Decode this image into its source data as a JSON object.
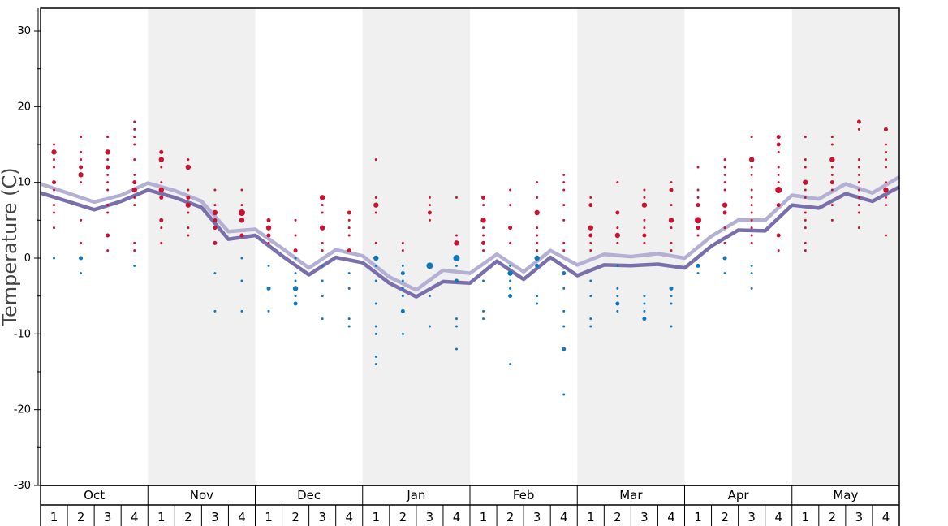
{
  "chart_data": {
    "type": "scatter",
    "title": "",
    "ylabel": "Temperature (C)",
    "xlabel": "",
    "ylim": [
      -30,
      33
    ],
    "yticks": [
      -30,
      -20,
      -10,
      0,
      10,
      20,
      30
    ],
    "grid": false,
    "months": [
      "Oct",
      "Nov",
      "Dec",
      "Jan",
      "Feb",
      "Mar",
      "Apr",
      "May"
    ],
    "weeks": [
      "1",
      "2",
      "3",
      "4"
    ],
    "colors": {
      "warm_points": "#cc1133",
      "cold_points": "#1177bb",
      "line_light": "#b3b0d3",
      "line_dark": "#7a6fab",
      "shade": "#f0f0f0"
    },
    "series": [
      {
        "name": "",
        "values": [
          9.8,
          8.6,
          7.4,
          8.3,
          9.9,
          8.9,
          7.5,
          3.5,
          3.8,
          1.3,
          -1.3,
          1.1,
          0.3,
          -2.5,
          -4.2,
          -1.6,
          -2.0,
          0.5,
          -1.8,
          1.0,
          -0.9,
          0.5,
          0.2,
          0.6,
          0.0,
          2.9,
          5.0,
          5.0,
          8.3,
          7.8,
          9.8,
          8.6,
          10.7
        ]
      },
      {
        "name": "",
        "values": [
          8.6,
          7.5,
          6.4,
          7.5,
          9.0,
          8.0,
          6.7,
          2.5,
          3.0,
          0.3,
          -2.2,
          0.1,
          -0.6,
          -3.3,
          -5.1,
          -3.1,
          -3.3,
          -0.4,
          -2.8,
          0.1,
          -2.3,
          -0.9,
          -1.0,
          -0.8,
          -1.3,
          1.6,
          3.7,
          3.6,
          7.0,
          6.6,
          8.5,
          7.5,
          9.4
        ]
      }
    ],
    "points_warm": [
      [
        1,
        15,
        1
      ],
      [
        1,
        14,
        3
      ],
      [
        1,
        13,
        1
      ],
      [
        1,
        12,
        1
      ],
      [
        1,
        10,
        2
      ],
      [
        1,
        9,
        1
      ],
      [
        1,
        7,
        1
      ],
      [
        1,
        6,
        1
      ],
      [
        1,
        4,
        1
      ],
      [
        2,
        16,
        1
      ],
      [
        2,
        14,
        1
      ],
      [
        2,
        13,
        1
      ],
      [
        2,
        12,
        2
      ],
      [
        2,
        11,
        3
      ],
      [
        2,
        10,
        1
      ],
      [
        2,
        5,
        1
      ],
      [
        2,
        2,
        1
      ],
      [
        3,
        16,
        1
      ],
      [
        3,
        14,
        3
      ],
      [
        3,
        13,
        1
      ],
      [
        3,
        12,
        2
      ],
      [
        3,
        11,
        1
      ],
      [
        3,
        10,
        1
      ],
      [
        3,
        9,
        1
      ],
      [
        3,
        7,
        1
      ],
      [
        3,
        6,
        1
      ],
      [
        3,
        3,
        2
      ],
      [
        3,
        1,
        1
      ],
      [
        4,
        18,
        1
      ],
      [
        4,
        17,
        1
      ],
      [
        4,
        16,
        1
      ],
      [
        4,
        15,
        1
      ],
      [
        4,
        13,
        1
      ],
      [
        4,
        11,
        1
      ],
      [
        4,
        10,
        2
      ],
      [
        4,
        9,
        3
      ],
      [
        4,
        8,
        1
      ],
      [
        4,
        7,
        1
      ],
      [
        4,
        2,
        1
      ],
      [
        4,
        1,
        1
      ],
      [
        5,
        14,
        2
      ],
      [
        5,
        13,
        3
      ],
      [
        5,
        12,
        1
      ],
      [
        5,
        10,
        1
      ],
      [
        5,
        9,
        3
      ],
      [
        5,
        8,
        2
      ],
      [
        5,
        5,
        2
      ],
      [
        5,
        4,
        1
      ],
      [
        5,
        2,
        1
      ],
      [
        6,
        13,
        1
      ],
      [
        6,
        12,
        3
      ],
      [
        6,
        9,
        1
      ],
      [
        6,
        8,
        2
      ],
      [
        6,
        7,
        3
      ],
      [
        6,
        6,
        1
      ],
      [
        6,
        4,
        1
      ],
      [
        6,
        3,
        1
      ],
      [
        7,
        9,
        1
      ],
      [
        7,
        7,
        1
      ],
      [
        7,
        6,
        3
      ],
      [
        7,
        5,
        2
      ],
      [
        7,
        4,
        2
      ],
      [
        7,
        2,
        2
      ],
      [
        8,
        9,
        1
      ],
      [
        8,
        7,
        1
      ],
      [
        8,
        6,
        4
      ],
      [
        8,
        5,
        3
      ],
      [
        8,
        3,
        2
      ],
      [
        9,
        5,
        2
      ],
      [
        9,
        4,
        3
      ],
      [
        9,
        3,
        2
      ],
      [
        9,
        2,
        1
      ],
      [
        10,
        5,
        1
      ],
      [
        10,
        3,
        1
      ],
      [
        10,
        1,
        2
      ],
      [
        11,
        8,
        3
      ],
      [
        11,
        7,
        1
      ],
      [
        11,
        6,
        1
      ],
      [
        11,
        4,
        3
      ],
      [
        11,
        2,
        1
      ],
      [
        11,
        1,
        1
      ],
      [
        12,
        6,
        2
      ],
      [
        12,
        5,
        1
      ],
      [
        12,
        4,
        1
      ],
      [
        12,
        3,
        1
      ],
      [
        12,
        1,
        2
      ],
      [
        13,
        13,
        1
      ],
      [
        13,
        8,
        1
      ],
      [
        13,
        7,
        3
      ],
      [
        13,
        6,
        1
      ],
      [
        13,
        2,
        1
      ],
      [
        14,
        2,
        1
      ],
      [
        14,
        1,
        1
      ],
      [
        15,
        8,
        1
      ],
      [
        15,
        7,
        1
      ],
      [
        15,
        6,
        2
      ],
      [
        15,
        5,
        1
      ],
      [
        16,
        8,
        1
      ],
      [
        16,
        3,
        1
      ],
      [
        16,
        2,
        3
      ],
      [
        17,
        8,
        2
      ],
      [
        17,
        7,
        1
      ],
      [
        17,
        5,
        3
      ],
      [
        17,
        4,
        1
      ],
      [
        17,
        3,
        1
      ],
      [
        17,
        2,
        2
      ],
      [
        17,
        1,
        1
      ],
      [
        18,
        9,
        1
      ],
      [
        18,
        7,
        1
      ],
      [
        18,
        4,
        2
      ],
      [
        18,
        2,
        1
      ],
      [
        19,
        10,
        1
      ],
      [
        19,
        8,
        1
      ],
      [
        19,
        6,
        3
      ],
      [
        19,
        4,
        1
      ],
      [
        19,
        3,
        1
      ],
      [
        19,
        2,
        1
      ],
      [
        19,
        1,
        1
      ],
      [
        20,
        11,
        1
      ],
      [
        20,
        10,
        1
      ],
      [
        20,
        9,
        1
      ],
      [
        20,
        7,
        1
      ],
      [
        20,
        5,
        1
      ],
      [
        20,
        2,
        1
      ],
      [
        20,
        1,
        1
      ],
      [
        21,
        8,
        1
      ],
      [
        21,
        7,
        2
      ],
      [
        21,
        4,
        3
      ],
      [
        21,
        3,
        2
      ],
      [
        21,
        2,
        1
      ],
      [
        21,
        1,
        1
      ],
      [
        22,
        10,
        1
      ],
      [
        22,
        6,
        2
      ],
      [
        22,
        4,
        1
      ],
      [
        22,
        3,
        3
      ],
      [
        22,
        2,
        1
      ],
      [
        23,
        9,
        1
      ],
      [
        23,
        8,
        1
      ],
      [
        23,
        7,
        3
      ],
      [
        23,
        5,
        1
      ],
      [
        23,
        4,
        1
      ],
      [
        23,
        3,
        2
      ],
      [
        23,
        2,
        1
      ],
      [
        24,
        10,
        1
      ],
      [
        24,
        9,
        2
      ],
      [
        24,
        7,
        1
      ],
      [
        24,
        5,
        3
      ],
      [
        24,
        4,
        1
      ],
      [
        24,
        2,
        1
      ],
      [
        24,
        1,
        1
      ],
      [
        25,
        12,
        1
      ],
      [
        25,
        9,
        1
      ],
      [
        25,
        8,
        1
      ],
      [
        25,
        7,
        2
      ],
      [
        25,
        5,
        4
      ],
      [
        25,
        4,
        2
      ],
      [
        25,
        3,
        1
      ],
      [
        26,
        13,
        1
      ],
      [
        26,
        12,
        1
      ],
      [
        26,
        11,
        1
      ],
      [
        26,
        10,
        1
      ],
      [
        26,
        9,
        1
      ],
      [
        26,
        7,
        3
      ],
      [
        26,
        6,
        2
      ],
      [
        26,
        4,
        1
      ],
      [
        26,
        2,
        1
      ],
      [
        27,
        16,
        1
      ],
      [
        27,
        13,
        3
      ],
      [
        27,
        12,
        1
      ],
      [
        27,
        11,
        1
      ],
      [
        27,
        9,
        1
      ],
      [
        27,
        8,
        1
      ],
      [
        27,
        7,
        1
      ],
      [
        27,
        6,
        1
      ],
      [
        27,
        5,
        1
      ],
      [
        27,
        4,
        1
      ],
      [
        27,
        3,
        1
      ],
      [
        27,
        2,
        1
      ],
      [
        28,
        16,
        2
      ],
      [
        28,
        15,
        2
      ],
      [
        28,
        14,
        1
      ],
      [
        28,
        12,
        1
      ],
      [
        28,
        11,
        1
      ],
      [
        28,
        10,
        1
      ],
      [
        28,
        9,
        4
      ],
      [
        28,
        7,
        2
      ],
      [
        28,
        3,
        2
      ],
      [
        28,
        1,
        1
      ],
      [
        29,
        16,
        1
      ],
      [
        29,
        13,
        1
      ],
      [
        29,
        12,
        1
      ],
      [
        29,
        10,
        3
      ],
      [
        29,
        9,
        1
      ],
      [
        29,
        8,
        1
      ],
      [
        29,
        6,
        1
      ],
      [
        29,
        5,
        1
      ],
      [
        29,
        4,
        1
      ],
      [
        29,
        2,
        1
      ],
      [
        29,
        1,
        1
      ],
      [
        30,
        16,
        1
      ],
      [
        30,
        15,
        1
      ],
      [
        30,
        13,
        3
      ],
      [
        30,
        12,
        1
      ],
      [
        30,
        11,
        1
      ],
      [
        30,
        10,
        2
      ],
      [
        30,
        9,
        1
      ],
      [
        30,
        7,
        1
      ],
      [
        30,
        5,
        1
      ],
      [
        31,
        18,
        2
      ],
      [
        31,
        17,
        1
      ],
      [
        31,
        13,
        1
      ],
      [
        31,
        12,
        1
      ],
      [
        31,
        11,
        1
      ],
      [
        31,
        10,
        1
      ],
      [
        31,
        9,
        1
      ],
      [
        31,
        8,
        1
      ],
      [
        31,
        7,
        1
      ],
      [
        31,
        6,
        1
      ],
      [
        31,
        4,
        1
      ],
      [
        32,
        17,
        2
      ],
      [
        32,
        15,
        1
      ],
      [
        32,
        14,
        1
      ],
      [
        32,
        13,
        1
      ],
      [
        32,
        12,
        1
      ],
      [
        32,
        10,
        1
      ],
      [
        32,
        9,
        3
      ],
      [
        32,
        8,
        1
      ],
      [
        32,
        7,
        1
      ],
      [
        32,
        3,
        1
      ]
    ],
    "points_cold": [
      [
        1,
        0,
        1
      ],
      [
        2,
        0,
        2
      ],
      [
        2,
        -2,
        1
      ],
      [
        4,
        -1,
        1
      ],
      [
        7,
        -2,
        1
      ],
      [
        7,
        -7,
        1
      ],
      [
        8,
        0,
        1
      ],
      [
        8,
        -3,
        1
      ],
      [
        8,
        -7,
        1
      ],
      [
        9,
        -1,
        1
      ],
      [
        9,
        -4,
        2
      ],
      [
        9,
        -7,
        1
      ],
      [
        10,
        0,
        1
      ],
      [
        10,
        -2,
        1
      ],
      [
        10,
        -3,
        1
      ],
      [
        10,
        -4,
        3
      ],
      [
        10,
        -5,
        1
      ],
      [
        10,
        -6,
        2
      ],
      [
        11,
        -1,
        1
      ],
      [
        11,
        -3,
        1
      ],
      [
        11,
        -5,
        1
      ],
      [
        11,
        -8,
        1
      ],
      [
        12,
        -2,
        1
      ],
      [
        12,
        -4,
        1
      ],
      [
        12,
        -8,
        1
      ],
      [
        12,
        -9,
        1
      ],
      [
        13,
        0,
        3
      ],
      [
        13,
        -1,
        1
      ],
      [
        13,
        -3,
        1
      ],
      [
        13,
        -6,
        1
      ],
      [
        13,
        -9,
        1
      ],
      [
        13,
        -10,
        1
      ],
      [
        13,
        -13,
        1
      ],
      [
        13,
        -14,
        1
      ],
      [
        14,
        -1,
        1
      ],
      [
        14,
        -2,
        2
      ],
      [
        14,
        -3,
        1
      ],
      [
        14,
        -4,
        1
      ],
      [
        14,
        -5,
        1
      ],
      [
        14,
        -7,
        2
      ],
      [
        14,
        -10,
        1
      ],
      [
        15,
        -1,
        4
      ],
      [
        15,
        -5,
        1
      ],
      [
        15,
        -9,
        1
      ],
      [
        16,
        0,
        4
      ],
      [
        16,
        -1,
        1
      ],
      [
        16,
        -3,
        2
      ],
      [
        16,
        -8,
        1
      ],
      [
        16,
        -9,
        1
      ],
      [
        16,
        -12,
        1
      ],
      [
        17,
        -3,
        1
      ],
      [
        17,
        -7,
        1
      ],
      [
        17,
        -8,
        1
      ],
      [
        18,
        -1,
        1
      ],
      [
        18,
        -2,
        3
      ],
      [
        18,
        -3,
        1
      ],
      [
        18,
        -4,
        1
      ],
      [
        18,
        -5,
        2
      ],
      [
        18,
        -14,
        1
      ],
      [
        19,
        0,
        3
      ],
      [
        19,
        -1,
        2
      ],
      [
        19,
        -5,
        1
      ],
      [
        19,
        -6,
        1
      ],
      [
        20,
        -2,
        2
      ],
      [
        20,
        -4,
        1
      ],
      [
        20,
        -7,
        1
      ],
      [
        20,
        -9,
        1
      ],
      [
        20,
        -12,
        2
      ],
      [
        20,
        -18,
        1
      ],
      [
        21,
        -3,
        1
      ],
      [
        21,
        -5,
        1
      ],
      [
        21,
        -8,
        1
      ],
      [
        21,
        -9,
        1
      ],
      [
        22,
        -1,
        1
      ],
      [
        22,
        -4,
        1
      ],
      [
        22,
        -5,
        1
      ],
      [
        22,
        -6,
        2
      ],
      [
        22,
        -7,
        1
      ],
      [
        23,
        -5,
        1
      ],
      [
        23,
        -6,
        1
      ],
      [
        23,
        -7,
        1
      ],
      [
        23,
        -8,
        2
      ],
      [
        24,
        -4,
        2
      ],
      [
        24,
        -5,
        1
      ],
      [
        24,
        -6,
        1
      ],
      [
        24,
        -9,
        1
      ],
      [
        25,
        -1,
        2
      ],
      [
        25,
        -2,
        1
      ],
      [
        26,
        0,
        2
      ],
      [
        26,
        -2,
        1
      ],
      [
        27,
        -1,
        1
      ],
      [
        27,
        -2,
        1
      ],
      [
        27,
        -4,
        1
      ]
    ]
  }
}
